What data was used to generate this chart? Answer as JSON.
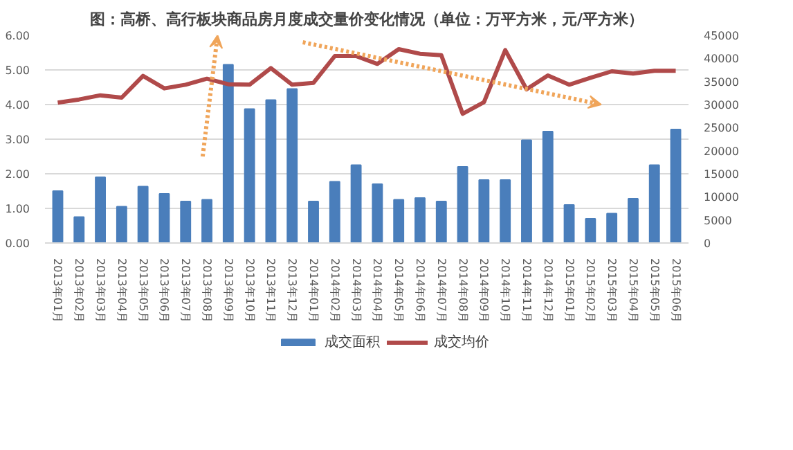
{
  "chart_data": {
    "type": "bar",
    "title": "图：高桥、高行板块商品房月度成交量价变化情况（单位：万平方米，元/平方米）",
    "categories": [
      "2013年01月",
      "2013年02月",
      "2013年03月",
      "2013年04月",
      "2013年05月",
      "2013年06月",
      "2013年07月",
      "2013年08月",
      "2013年09月",
      "2013年10月",
      "2013年11月",
      "2013年12月",
      "2014年01月",
      "2014年02月",
      "2014年03月",
      "2014年04月",
      "2014年05月",
      "2014年06月",
      "2014年07月",
      "2014年08月",
      "2014年09月",
      "2014年10月",
      "2014年11月",
      "2014年12月",
      "2015年01月",
      "2015年02月",
      "2015年03月",
      "2015年04月",
      "2015年05月",
      "2015年06月"
    ],
    "series": [
      {
        "name": "成交面积",
        "color": "#4a7ebb",
        "values": [
          1.5,
          0.75,
          1.9,
          1.05,
          1.63,
          1.42,
          1.2,
          1.25,
          5.15,
          3.87,
          4.13,
          4.45,
          1.2,
          1.77,
          2.25,
          1.7,
          1.25,
          1.3,
          1.2,
          2.2,
          1.82,
          1.82,
          2.97,
          3.22,
          1.1,
          0.7,
          0.85,
          1.28,
          2.25,
          3.28
        ]
      },
      {
        "name": "成交均价",
        "type": "line",
        "axis": "y2",
        "color": "#b04a4a",
        "values": [
          30400,
          31100,
          32000,
          31500,
          36200,
          33500,
          34300,
          35600,
          34400,
          34300,
          37900,
          34300,
          34700,
          40500,
          40500,
          38800,
          42000,
          41000,
          40700,
          28000,
          30500,
          41800,
          33300,
          36300,
          34300,
          35800,
          37200,
          36700,
          37300,
          37300
        ]
      }
    ],
    "ylim": [
      0,
      6
    ],
    "yticks": [
      {
        "value": 0,
        "label": "0.00"
      },
      {
        "value": 1,
        "label": "1.00"
      },
      {
        "value": 2,
        "label": "2.00"
      },
      {
        "value": 3,
        "label": "3.00"
      },
      {
        "value": 4,
        "label": "4.00"
      },
      {
        "value": 5,
        "label": "5.00"
      },
      {
        "value": 6,
        "label": "6.00"
      }
    ],
    "y2lim": [
      0,
      45000
    ],
    "y2ticks": [
      0,
      5000,
      10000,
      15000,
      20000,
      25000,
      30000,
      35000,
      40000,
      45000
    ],
    "grid": "y",
    "legend": "bottom"
  }
}
